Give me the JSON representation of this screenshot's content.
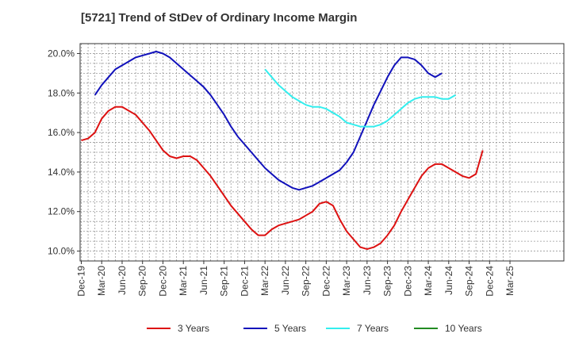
{
  "chart_data": {
    "type": "line",
    "title": "[5721]  Trend of StDev of Ordinary Income Margin",
    "xlabel": "",
    "ylabel": "",
    "x_ticks": [
      "Dec-19",
      "Mar-20",
      "Jun-20",
      "Sep-20",
      "Dec-20",
      "Mar-21",
      "Jun-21",
      "Sep-21",
      "Dec-21",
      "Mar-22",
      "Jun-22",
      "Sep-22",
      "Dec-22",
      "Mar-23",
      "Jun-23",
      "Sep-23",
      "Dec-23",
      "Mar-24",
      "Jun-24",
      "Sep-24",
      "Dec-24",
      "Mar-25"
    ],
    "y_ticks": [
      "10.0%",
      "12.0%",
      "14.0%",
      "16.0%",
      "18.0%",
      "20.0%"
    ],
    "y_tick_values": [
      10,
      12,
      14,
      16,
      18,
      20
    ],
    "ylim": [
      9.5,
      20.5
    ],
    "grid": true,
    "legend_position": "bottom",
    "series": [
      {
        "name": "3 Years",
        "color": "#dd1111",
        "start_month_index": 0,
        "values": [
          15.6,
          15.7,
          16.0,
          16.7,
          17.1,
          17.3,
          17.3,
          17.1,
          16.9,
          16.5,
          16.1,
          15.6,
          15.1,
          14.8,
          14.7,
          14.8,
          14.8,
          14.6,
          14.2,
          13.8,
          13.3,
          12.8,
          12.3,
          11.9,
          11.5,
          11.1,
          10.8,
          10.8,
          11.1,
          11.3,
          11.4,
          11.5,
          11.6,
          11.8,
          12.0,
          12.4,
          12.5,
          12.3,
          11.6,
          11.0,
          10.6,
          10.2,
          10.1,
          10.2,
          10.4,
          10.8,
          11.3,
          12.0,
          12.6,
          13.2,
          13.8,
          14.2,
          14.4,
          14.4,
          14.2,
          14.0,
          13.8,
          13.7,
          13.9,
          15.1
        ]
      },
      {
        "name": "5 Years",
        "color": "#1111bb",
        "start_month_index": 2,
        "values": [
          17.9,
          18.4,
          18.8,
          19.2,
          19.4,
          19.6,
          19.8,
          19.9,
          20.0,
          20.1,
          20.0,
          19.8,
          19.5,
          19.2,
          18.9,
          18.6,
          18.3,
          17.9,
          17.4,
          16.9,
          16.3,
          15.8,
          15.4,
          15.0,
          14.6,
          14.2,
          13.9,
          13.6,
          13.4,
          13.2,
          13.1,
          13.2,
          13.3,
          13.5,
          13.7,
          13.9,
          14.1,
          14.5,
          15.0,
          15.8,
          16.6,
          17.4,
          18.1,
          18.8,
          19.4,
          19.8,
          19.8,
          19.7,
          19.4,
          19.0,
          18.8,
          19.0
        ]
      },
      {
        "name": "7 Years",
        "color": "#33eeee",
        "start_month_index": 27,
        "values": [
          19.2,
          18.8,
          18.4,
          18.1,
          17.8,
          17.6,
          17.4,
          17.3,
          17.3,
          17.2,
          17.0,
          16.8,
          16.5,
          16.4,
          16.3,
          16.3,
          16.3,
          16.4,
          16.6,
          16.9,
          17.2,
          17.5,
          17.7,
          17.8,
          17.8,
          17.8,
          17.7,
          17.7,
          17.9
        ]
      },
      {
        "name": "10 Years",
        "color": "#228b22",
        "start_month_index": 0,
        "values": []
      }
    ]
  }
}
